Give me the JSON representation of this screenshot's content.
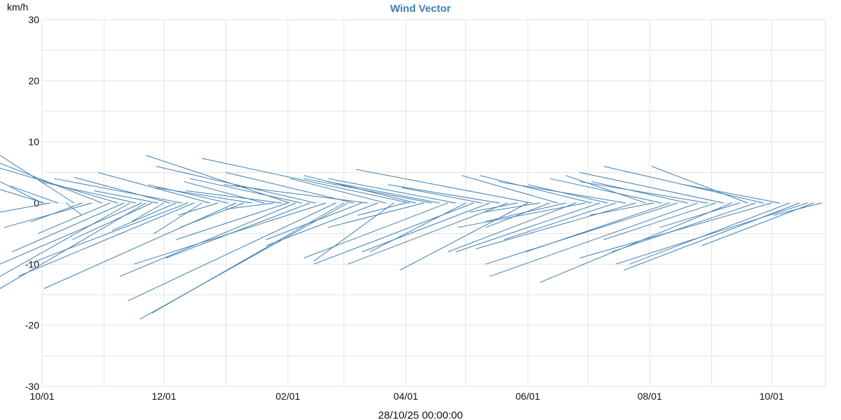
{
  "chart_data": {
    "type": "vector",
    "title": "Wind Vector",
    "ylabel": "km/h",
    "xlabel": "",
    "footer": "28/10/25 00:00:00",
    "ylim": [
      -30,
      30
    ],
    "y_ticks": [
      "30",
      "20",
      "10",
      "0",
      "-10",
      "-20",
      "-30"
    ],
    "y_tick_values": [
      30,
      20,
      10,
      0,
      -10,
      -20,
      -30
    ],
    "x_ticks": [
      "10/01",
      "12/01",
      "02/01",
      "04/01",
      "06/01",
      "08/01",
      "10/01"
    ],
    "x_tick_values": [
      "2024-10-01",
      "2024-12-01",
      "2025-02-01",
      "2025-04-01",
      "2025-06-01",
      "2025-08-01",
      "2025-10-01"
    ],
    "xlim": [
      "2024-10-01",
      "2025-10-28"
    ],
    "grid": true,
    "series": [
      {
        "color": "#3f7fb4",
        "vectors": [
          {
            "date": "2024-10-01",
            "u": 5.0,
            "v": 3.5
          },
          {
            "date": "2024-10-02",
            "u": 6.8,
            "v": 2.2
          },
          {
            "date": "2024-10-05",
            "u": 4.1,
            "v": -1.5
          },
          {
            "date": "2024-10-09",
            "u": 3.0,
            "v": 2.8
          },
          {
            "date": "2024-10-13",
            "u": -1.0,
            "v": -2.0
          },
          {
            "date": "2024-10-17",
            "u": 9.5,
            "v": 7.8
          },
          {
            "date": "2024-10-21",
            "u": 3.2,
            "v": -3.1
          },
          {
            "date": "2024-10-26",
            "u": 5.5,
            "v": -4.0
          },
          {
            "date": "2024-10-31",
            "u": 11.0,
            "v": 6.5
          },
          {
            "date": "2024-11-04",
            "u": 4.5,
            "v": -5.0
          },
          {
            "date": "2024-11-08",
            "u": 8.5,
            "v": 5.7
          },
          {
            "date": "2024-11-11",
            "u": 7.0,
            "v": -8.0
          },
          {
            "date": "2024-11-14",
            "u": 10.5,
            "v": -12.0
          },
          {
            "date": "2024-11-17",
            "u": 6.0,
            "v": 3.5
          },
          {
            "date": "2024-11-20",
            "u": 9.0,
            "v": -10.0
          },
          {
            "date": "2024-11-22",
            "u": 12.0,
            "v": -14.0
          },
          {
            "date": "2024-11-25",
            "u": 5.0,
            "v": -6.0
          },
          {
            "date": "2024-11-28",
            "u": 4.0,
            "v": 2.0
          },
          {
            "date": "2024-12-01",
            "u": 2.0,
            "v": -3.0
          },
          {
            "date": "2024-12-04",
            "u": 6.0,
            "v": 4.2
          },
          {
            "date": "2024-12-07",
            "u": 4.0,
            "v": -4.5
          },
          {
            "date": "2024-12-10",
            "u": 8.0,
            "v": 4.0
          },
          {
            "date": "2024-12-13",
            "u": 10.0,
            "v": -10.0
          },
          {
            "date": "2024-12-16",
            "u": 11.0,
            "v": -12.0
          },
          {
            "date": "2024-12-20",
            "u": 3.0,
            "v": -5.0
          },
          {
            "date": "2024-12-24",
            "u": 7.0,
            "v": 5.0
          },
          {
            "date": "2024-12-28",
            "u": 2.5,
            "v": -2.0
          },
          {
            "date": "2025-01-02",
            "u": 5.0,
            "v": 3.0
          },
          {
            "date": "2025-01-06",
            "u": 12.0,
            "v": -14.0
          },
          {
            "date": "2025-01-10",
            "u": 4.0,
            "v": -4.0
          },
          {
            "date": "2025-01-14",
            "u": 6.0,
            "v": 2.5
          },
          {
            "date": "2025-01-20",
            "u": 5.0,
            "v": 3.5
          },
          {
            "date": "2025-01-25",
            "u": 3.0,
            "v": -1.0
          },
          {
            "date": "2025-01-29",
            "u": 6.0,
            "v": 2.0
          },
          {
            "date": "2025-02-01",
            "u": 7.0,
            "v": -6.0
          },
          {
            "date": "2025-02-02",
            "u": 9.0,
            "v": 7.8
          },
          {
            "date": "2025-02-05",
            "u": 11.0,
            "v": -12.0
          },
          {
            "date": "2025-02-08",
            "u": 7.0,
            "v": 4.0
          },
          {
            "date": "2025-02-12",
            "u": 9.0,
            "v": -9.0
          },
          {
            "date": "2025-02-15",
            "u": 10.0,
            "v": 6.0
          },
          {
            "date": "2025-02-20",
            "u": 12.0,
            "v": -10.0
          },
          {
            "date": "2025-02-25",
            "u": 13.0,
            "v": -16.0
          },
          {
            "date": "2025-03-01",
            "u": 12.0,
            "v": -18.0
          },
          {
            "date": "2025-03-03",
            "u": 13.0,
            "v": -19.0
          },
          {
            "date": "2025-03-06",
            "u": 8.0,
            "v": 5.0
          },
          {
            "date": "2025-03-10",
            "u": 6.0,
            "v": -6.0
          },
          {
            "date": "2025-03-13",
            "u": 9.0,
            "v": 3.0
          },
          {
            "date": "2025-03-18",
            "u": 7.0,
            "v": -7.0
          },
          {
            "date": "2025-03-22",
            "u": 6.0,
            "v": 4.0
          },
          {
            "date": "2025-03-26",
            "u": 5.0,
            "v": -9.5
          },
          {
            "date": "2025-04-01",
            "u": 3.0,
            "v": -2.0
          },
          {
            "date": "2025-04-03",
            "u": 13.0,
            "v": 7.3
          },
          {
            "date": "2025-04-06",
            "u": 7.0,
            "v": 4.5
          },
          {
            "date": "2025-04-10",
            "u": 6.0,
            "v": -4.0
          },
          {
            "date": "2025-04-14",
            "u": 8.0,
            "v": 4.0
          },
          {
            "date": "2025-04-18",
            "u": 7.0,
            "v": 3.5
          },
          {
            "date": "2025-04-22",
            "u": 9.0,
            "v": -9.0
          },
          {
            "date": "2025-04-26",
            "u": 8.0,
            "v": 4.0
          },
          {
            "date": "2025-05-01",
            "u": 6.0,
            "v": -8.0
          },
          {
            "date": "2025-05-05",
            "u": 10.0,
            "v": -10.0
          },
          {
            "date": "2025-05-09",
            "u": 5.0,
            "v": 2.5
          },
          {
            "date": "2025-05-13",
            "u": 8.0,
            "v": -8.0
          },
          {
            "date": "2025-05-18",
            "u": 7.0,
            "v": 3.0
          },
          {
            "date": "2025-05-22",
            "u": 10.0,
            "v": -10.0
          },
          {
            "date": "2025-05-27",
            "u": 3.0,
            "v": -1.5
          },
          {
            "date": "2025-06-01",
            "u": 8.0,
            "v": -11.0
          },
          {
            "date": "2025-06-03",
            "u": 11.0,
            "v": 5.5
          },
          {
            "date": "2025-06-07",
            "u": 3.5,
            "v": -1.5
          },
          {
            "date": "2025-06-12",
            "u": 4.0,
            "v": -4.0
          },
          {
            "date": "2025-06-16",
            "u": 6.0,
            "v": 4.5
          },
          {
            "date": "2025-06-20",
            "u": 5.0,
            "v": -3.0
          },
          {
            "date": "2025-06-25",
            "u": 8.0,
            "v": -8.0
          },
          {
            "date": "2025-06-30",
            "u": 8.0,
            "v": -4.0
          },
          {
            "date": "2025-07-03",
            "u": 7.0,
            "v": 4.5
          },
          {
            "date": "2025-07-07",
            "u": 9.0,
            "v": -8.0
          },
          {
            "date": "2025-07-11",
            "u": 5.0,
            "v": 3.0
          },
          {
            "date": "2025-07-15",
            "u": 7.0,
            "v": -6.0
          },
          {
            "date": "2025-07-20",
            "u": 8.0,
            "v": 3.5
          },
          {
            "date": "2025-07-25",
            "u": 10.0,
            "v": -7.5
          },
          {
            "date": "2025-07-30",
            "u": 5.0,
            "v": 4.5
          },
          {
            "date": "2025-08-03",
            "u": 4.0,
            "v": -2.0
          },
          {
            "date": "2025-08-07",
            "u": 7.0,
            "v": 4.0
          },
          {
            "date": "2025-08-11",
            "u": 9.0,
            "v": -8.0
          },
          {
            "date": "2025-08-15",
            "u": 12.0,
            "v": -10.0
          },
          {
            "date": "2025-08-20",
            "u": 6.0,
            "v": 3.5
          },
          {
            "date": "2025-08-25",
            "u": 13.0,
            "v": -12.0
          },
          {
            "date": "2025-08-30",
            "u": 8.0,
            "v": 3.5
          },
          {
            "date": "2025-09-03",
            "u": 7.0,
            "v": -6.0
          },
          {
            "date": "2025-09-07",
            "u": 9.0,
            "v": 5.0
          },
          {
            "date": "2025-09-11",
            "u": 12.0,
            "v": -13.0
          },
          {
            "date": "2025-09-15",
            "u": 5.0,
            "v": -4.0
          },
          {
            "date": "2025-09-19",
            "u": 6.0,
            "v": 6.0
          },
          {
            "date": "2025-09-23",
            "u": 9.0,
            "v": -8.0
          },
          {
            "date": "2025-09-27",
            "u": 10.0,
            "v": 6.0
          },
          {
            "date": "2025-10-01",
            "u": 12.0,
            "v": -9.0
          },
          {
            "date": "2025-10-05",
            "u": 6.0,
            "v": 3.0
          },
          {
            "date": "2025-10-10",
            "u": 10.0,
            "v": -10.0
          },
          {
            "date": "2025-10-15",
            "u": 11.0,
            "v": -11.0
          },
          {
            "date": "2025-10-19",
            "u": 12.0,
            "v": -10.0
          },
          {
            "date": "2025-10-22",
            "u": 7.0,
            "v": -7.0
          },
          {
            "date": "2025-10-26",
            "u": 3.0,
            "v": -2.0
          }
        ]
      }
    ]
  }
}
